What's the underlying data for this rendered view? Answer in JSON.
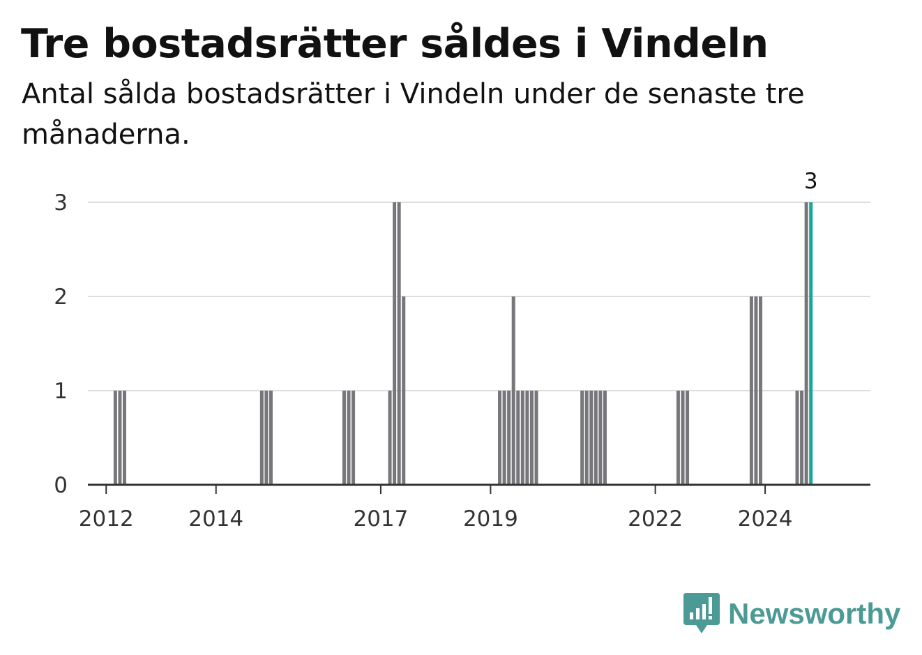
{
  "colors": {
    "bar": "#77767b",
    "highlight": "#1aa69b",
    "grid": "#dddddd",
    "axis": "#333333",
    "brand": "#4c9a95"
  },
  "brand": {
    "name": "Newsworthy",
    "icon": "chart-bubble-icon"
  },
  "chart_data": {
    "type": "bar",
    "title": "Tre bostadsrätter såldes i Vindeln",
    "subtitle": "Antal sålda bostadsrätter i Vindeln under de senaste tre månaderna.",
    "xlabel": "",
    "ylabel": "",
    "xlim": [
      "2011-09",
      "2025-12"
    ],
    "ylim": [
      0,
      3
    ],
    "yticks": [
      0,
      1,
      2,
      3
    ],
    "xticks": [
      {
        "label": "2012",
        "x": "2012-01"
      },
      {
        "label": "2014",
        "x": "2014-01"
      },
      {
        "label": "2017",
        "x": "2017-01"
      },
      {
        "label": "2019",
        "x": "2019-01"
      },
      {
        "label": "2022",
        "x": "2022-01"
      },
      {
        "label": "2024",
        "x": "2024-01"
      }
    ],
    "grid": true,
    "legend": "none",
    "series": [
      {
        "values": [
          {
            "x": "2012-03",
            "y": 1
          },
          {
            "x": "2012-04",
            "y": 1
          },
          {
            "x": "2012-05",
            "y": 1
          },
          {
            "x": "2014-11",
            "y": 1
          },
          {
            "x": "2014-12",
            "y": 1
          },
          {
            "x": "2015-01",
            "y": 1
          },
          {
            "x": "2016-05",
            "y": 1
          },
          {
            "x": "2016-06",
            "y": 1
          },
          {
            "x": "2016-07",
            "y": 1
          },
          {
            "x": "2017-03",
            "y": 1
          },
          {
            "x": "2017-04",
            "y": 3
          },
          {
            "x": "2017-05",
            "y": 3
          },
          {
            "x": "2017-06",
            "y": 2
          },
          {
            "x": "2019-03",
            "y": 1
          },
          {
            "x": "2019-04",
            "y": 1
          },
          {
            "x": "2019-05",
            "y": 1
          },
          {
            "x": "2019-06",
            "y": 2
          },
          {
            "x": "2019-07",
            "y": 1
          },
          {
            "x": "2019-08",
            "y": 1
          },
          {
            "x": "2019-09",
            "y": 1
          },
          {
            "x": "2019-10",
            "y": 1
          },
          {
            "x": "2019-11",
            "y": 1
          },
          {
            "x": "2020-09",
            "y": 1
          },
          {
            "x": "2020-10",
            "y": 1
          },
          {
            "x": "2020-11",
            "y": 1
          },
          {
            "x": "2020-12",
            "y": 1
          },
          {
            "x": "2021-01",
            "y": 1
          },
          {
            "x": "2021-02",
            "y": 1
          },
          {
            "x": "2022-06",
            "y": 1
          },
          {
            "x": "2022-07",
            "y": 1
          },
          {
            "x": "2022-08",
            "y": 1
          },
          {
            "x": "2023-10",
            "y": 2
          },
          {
            "x": "2023-11",
            "y": 2
          },
          {
            "x": "2023-12",
            "y": 2
          },
          {
            "x": "2024-08",
            "y": 1
          },
          {
            "x": "2024-09",
            "y": 1
          },
          {
            "x": "2024-10",
            "y": 3
          },
          {
            "x": "2024-11",
            "y": 3,
            "highlight": true,
            "label": "3"
          }
        ]
      }
    ]
  }
}
